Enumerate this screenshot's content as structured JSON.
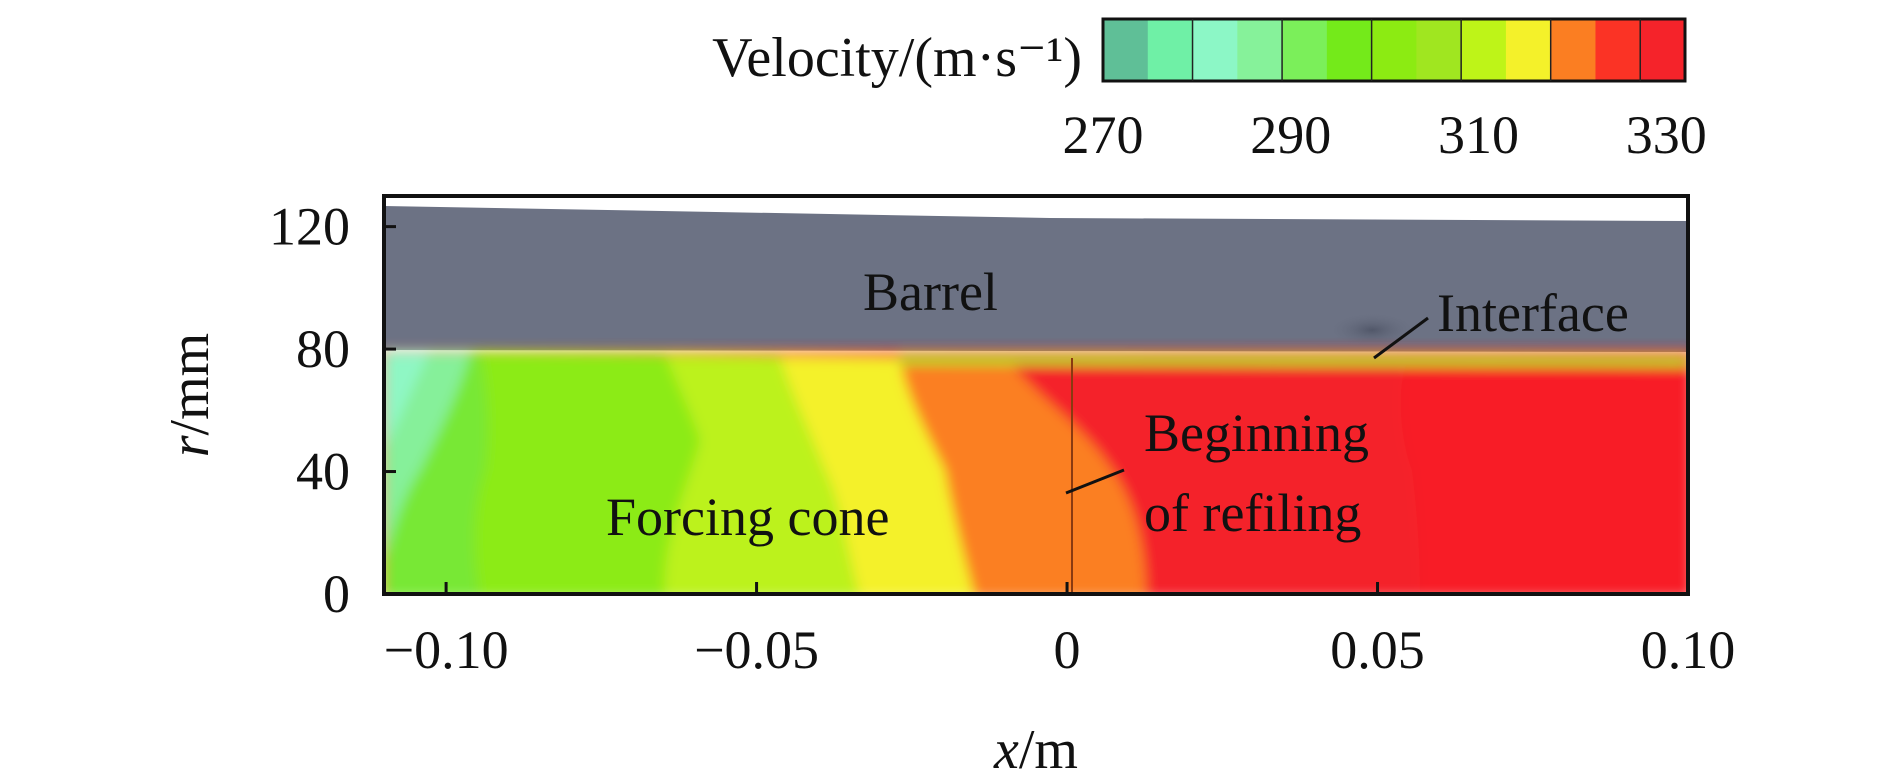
{
  "chart_data": {
    "type": "heatmap",
    "colorbar": {
      "title": "Velocity/(m·s⁻¹)",
      "range": [
        270,
        332
      ],
      "ticks": [
        270,
        290,
        310,
        330
      ],
      "colors": [
        "#5fbf97",
        "#6ff0a6",
        "#8cf7c6",
        "#86f29a",
        "#7bef5a",
        "#74ea1a",
        "#8ceb12",
        "#a0e620",
        "#bef418",
        "#f4f12a",
        "#fb7e22",
        "#fb3325",
        "#f5232a"
      ]
    },
    "x_axis": {
      "label_var": "x",
      "label_unit": "/m",
      "range": [
        -0.11,
        0.1
      ],
      "ticks": [
        -0.1,
        -0.05,
        0,
        0.05,
        0.1
      ],
      "tick_labels": [
        "−0.10",
        "−0.05",
        "0",
        "0.05",
        "0.10"
      ]
    },
    "y_axis": {
      "label_var": "r",
      "label_unit": "/mm",
      "range": [
        0,
        130
      ],
      "ticks": [
        0,
        40,
        80,
        120
      ],
      "tick_labels": [
        "0",
        "40",
        "80",
        "120"
      ]
    },
    "regions": {
      "barrel": {
        "label": "Barrel",
        "r_inner": 78,
        "r_outer_start": 127,
        "r_outer_end": 122,
        "color": "#6c7284"
      },
      "velocity_bands_at_axis": [
        {
          "x_end": -0.093,
          "velocity": 300
        },
        {
          "x_end": -0.065,
          "velocity": 303
        },
        {
          "x_end": -0.048,
          "velocity": 308
        },
        {
          "x_end": -0.033,
          "velocity": 315
        },
        {
          "x_end": -0.015,
          "velocity": 318
        },
        {
          "x_end": 0.013,
          "velocity": 324
        },
        {
          "x_end": 0.1,
          "velocity": 330
        }
      ]
    },
    "annotations": {
      "interface": "Interface",
      "forcing_cone": "Forcing cone",
      "beginning_line1": "Beginning",
      "beginning_line2": "of refiling"
    }
  }
}
